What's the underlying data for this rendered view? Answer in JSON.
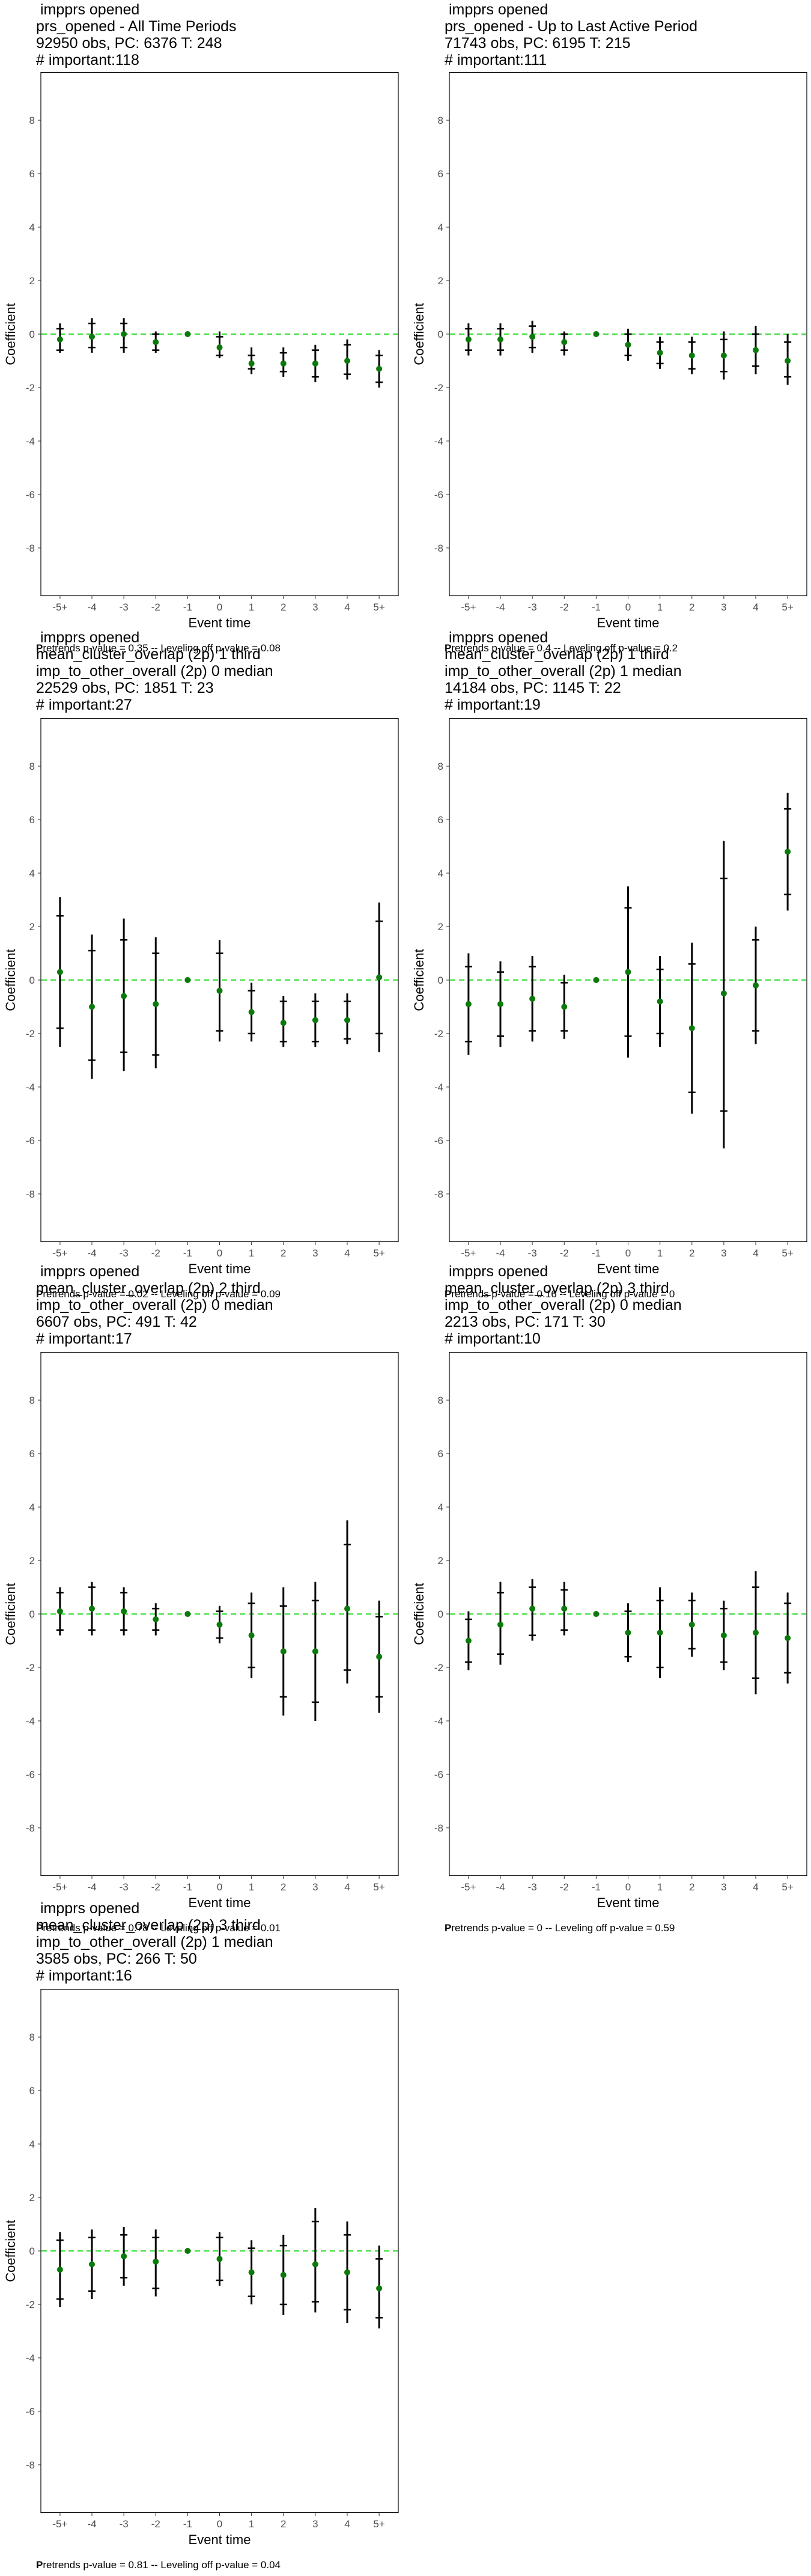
{
  "y_axis_label": "Coefficient",
  "x_axis_label": "Event time",
  "colors": {
    "point": "#0a7a0a",
    "zero_line": "#33dd33",
    "bar": "#000000",
    "frame": "#000000"
  },
  "chart_data": [
    {
      "type": "scatter",
      "title_lines": [
        " impprs opened",
        "prs_opened - All Time Periods",
        "92950 obs, PC: 6376 T: 248",
        "# important:118"
      ],
      "xlabel": "Event time",
      "ylabel": "Coefficient",
      "categories": [
        "-5+",
        "-4",
        "-3",
        "-2",
        "-1",
        "0",
        "1",
        "2",
        "3",
        "4",
        "5+"
      ],
      "y_ticks": [
        -8,
        -6,
        -4,
        -2,
        0,
        2,
        4,
        6,
        8
      ],
      "ylim": [
        -9.8,
        9.8
      ],
      "reference_line": 0,
      "series": [
        {
          "values": [
            -0.2,
            -0.1,
            0.0,
            -0.3,
            0.0,
            -0.5,
            -1.1,
            -1.1,
            -1.1,
            -1.0,
            -1.3
          ],
          "ci_lower": [
            -0.7,
            -0.7,
            -0.7,
            -0.7,
            0.0,
            -0.9,
            -1.5,
            -1.6,
            -1.8,
            -1.7,
            -2.0
          ],
          "ci_upper": [
            0.4,
            0.6,
            0.6,
            0.1,
            0.0,
            0.1,
            -0.5,
            -0.5,
            -0.4,
            -0.2,
            -0.6
          ],
          "ci_inner_lower": [
            -0.6,
            -0.5,
            -0.5,
            -0.6,
            0.0,
            -0.8,
            -1.3,
            -1.4,
            -1.6,
            -1.5,
            -1.8
          ],
          "ci_inner_upper": [
            0.2,
            0.4,
            0.4,
            0.0,
            0.0,
            -0.1,
            -0.8,
            -0.7,
            -0.6,
            -0.4,
            -0.8
          ]
        }
      ],
      "footnote": {
        "prefix": "P",
        "rest": "retrends p-value = 0.35 -- Leveling off p-value = 0.08"
      }
    },
    {
      "type": "scatter",
      "title_lines": [
        " impprs opened",
        "prs_opened - Up to Last Active Period",
        "71743 obs, PC: 6195 T: 215",
        "# important:111"
      ],
      "xlabel": "Event time",
      "ylabel": "Coefficient",
      "categories": [
        "-5+",
        "-4",
        "-3",
        "-2",
        "-1",
        "0",
        "1",
        "2",
        "3",
        "4",
        "5+"
      ],
      "y_ticks": [
        -8,
        -6,
        -4,
        -2,
        0,
        2,
        4,
        6,
        8
      ],
      "ylim": [
        -9.8,
        9.8
      ],
      "reference_line": 0,
      "series": [
        {
          "values": [
            -0.2,
            -0.2,
            -0.1,
            -0.3,
            0.0,
            -0.4,
            -0.7,
            -0.8,
            -0.8,
            -0.6,
            -1.0
          ],
          "ci_lower": [
            -0.8,
            -0.8,
            -0.7,
            -0.8,
            0.0,
            -1.0,
            -1.3,
            -1.5,
            -1.7,
            -1.5,
            -1.9
          ],
          "ci_upper": [
            0.4,
            0.4,
            0.5,
            0.1,
            0.0,
            0.2,
            -0.1,
            -0.1,
            0.1,
            0.3,
            0.0
          ],
          "ci_inner_lower": [
            -0.6,
            -0.6,
            -0.5,
            -0.6,
            0.0,
            -0.8,
            -1.1,
            -1.3,
            -1.4,
            -1.2,
            -1.6
          ],
          "ci_inner_upper": [
            0.2,
            0.2,
            0.3,
            0.0,
            0.0,
            0.0,
            -0.3,
            -0.3,
            -0.2,
            0.0,
            -0.3
          ]
        }
      ],
      "footnote": {
        "prefix": "P",
        "rest": "retrends p-value = 0.4 -- Leveling off p-value = 0.2"
      }
    },
    {
      "type": "scatter",
      "title_lines": [
        " impprs opened",
        "mean_cluster_overlap (2p) 1 third",
        "imp_to_other_overall (2p) 0 median",
        "22529 obs, PC: 1851 T: 23",
        "# important:27"
      ],
      "xlabel": "Event time",
      "ylabel": "Coefficient",
      "categories": [
        "-5+",
        "-4",
        "-3",
        "-2",
        "-1",
        "0",
        "1",
        "2",
        "3",
        "4",
        "5+"
      ],
      "y_ticks": [
        -8,
        -6,
        -4,
        -2,
        0,
        2,
        4,
        6,
        8
      ],
      "ylim": [
        -9.8,
        9.8
      ],
      "reference_line": 0,
      "series": [
        {
          "values": [
            0.3,
            -1.0,
            -0.6,
            -0.9,
            0.0,
            -0.4,
            -1.2,
            -1.6,
            -1.5,
            -1.5,
            0.1
          ],
          "ci_lower": [
            -2.5,
            -3.7,
            -3.4,
            -3.3,
            0.0,
            -2.3,
            -2.3,
            -2.5,
            -2.5,
            -2.4,
            -2.7
          ],
          "ci_upper": [
            3.1,
            1.7,
            2.3,
            1.6,
            0.0,
            1.5,
            -0.1,
            -0.6,
            -0.5,
            -0.5,
            2.9
          ],
          "ci_inner_lower": [
            -1.8,
            -3.0,
            -2.7,
            -2.8,
            0.0,
            -1.9,
            -2.0,
            -2.3,
            -2.3,
            -2.2,
            -2.0
          ],
          "ci_inner_upper": [
            2.4,
            1.1,
            1.5,
            1.0,
            0.0,
            1.0,
            -0.4,
            -0.8,
            -0.8,
            -0.8,
            2.2
          ]
        }
      ],
      "footnote": {
        "prefix": "P",
        "rest": "retrends p-value = 0.02 -- Leveling off p-value = 0.09"
      }
    },
    {
      "type": "scatter",
      "title_lines": [
        " impprs opened",
        "mean_cluster_overlap (2p) 1 third",
        "imp_to_other_overall (2p) 1 median",
        "14184 obs, PC: 1145 T: 22",
        "# important:19"
      ],
      "xlabel": "Event time",
      "ylabel": "Coefficient",
      "categories": [
        "-5+",
        "-4",
        "-3",
        "-2",
        "-1",
        "0",
        "1",
        "2",
        "3",
        "4",
        "5+"
      ],
      "y_ticks": [
        -8,
        -6,
        -4,
        -2,
        0,
        2,
        4,
        6,
        8
      ],
      "ylim": [
        -9.8,
        9.8
      ],
      "reference_line": 0,
      "series": [
        {
          "values": [
            -0.9,
            -0.9,
            -0.7,
            -1.0,
            0.0,
            0.3,
            -0.8,
            -1.8,
            -0.5,
            -0.2,
            4.8
          ],
          "ci_lower": [
            -2.8,
            -2.5,
            -2.3,
            -2.2,
            0.0,
            -2.9,
            -2.5,
            -5.0,
            -6.3,
            -2.4,
            2.6
          ],
          "ci_upper": [
            1.0,
            0.7,
            0.9,
            0.2,
            0.0,
            3.5,
            0.9,
            1.4,
            5.2,
            2.0,
            7.0
          ],
          "ci_inner_lower": [
            -2.3,
            -2.1,
            -1.9,
            -1.9,
            0.0,
            -2.1,
            -2.0,
            -4.2,
            -4.9,
            -1.9,
            3.2
          ],
          "ci_inner_upper": [
            0.5,
            0.3,
            0.5,
            -0.1,
            0.0,
            2.7,
            0.4,
            0.6,
            3.8,
            1.5,
            6.4
          ]
        }
      ],
      "footnote": {
        "prefix": "P",
        "rest": "retrends p-value = 0.16 -- Leveling off p-value = 0"
      }
    },
    {
      "type": "scatter",
      "title_lines": [
        " impprs opened",
        "mean_cluster_overlap (2p) 2 third",
        "imp_to_other_overall (2p) 0 median",
        "6607 obs, PC: 491 T: 42",
        "# important:17"
      ],
      "xlabel": "Event time",
      "ylabel": "Coefficient",
      "categories": [
        "-5+",
        "-4",
        "-3",
        "-2",
        "-1",
        "0",
        "1",
        "2",
        "3",
        "4",
        "5+"
      ],
      "y_ticks": [
        -8,
        -6,
        -4,
        -2,
        0,
        2,
        4,
        6,
        8
      ],
      "ylim": [
        -9.8,
        9.8
      ],
      "reference_line": 0,
      "series": [
        {
          "values": [
            0.1,
            0.2,
            0.1,
            -0.2,
            0.0,
            -0.4,
            -0.8,
            -1.4,
            -1.4,
            0.2,
            -1.6
          ],
          "ci_lower": [
            -0.8,
            -0.8,
            -0.8,
            -0.8,
            0.0,
            -1.1,
            -2.4,
            -3.8,
            -4.0,
            -2.6,
            -3.7
          ],
          "ci_upper": [
            1.0,
            1.2,
            1.0,
            0.4,
            0.0,
            0.3,
            0.8,
            1.0,
            1.2,
            3.5,
            0.5
          ],
          "ci_inner_lower": [
            -0.6,
            -0.6,
            -0.6,
            -0.6,
            0.0,
            -0.9,
            -2.0,
            -3.1,
            -3.3,
            -2.1,
            -3.1
          ],
          "ci_inner_upper": [
            0.8,
            1.0,
            0.8,
            0.2,
            0.0,
            0.1,
            0.4,
            0.3,
            0.5,
            2.6,
            -0.1
          ]
        }
      ],
      "footnote": {
        "prefix": "P",
        "rest": "retrends p-value = 0.78 -- Leveling off p-value = 0.01"
      }
    },
    {
      "type": "scatter",
      "title_lines": [
        " impprs opened",
        "mean_cluster_overlap (2p) 3 third",
        "imp_to_other_overall (2p) 0 median",
        "2213 obs, PC: 171 T: 30",
        "# important:10"
      ],
      "xlabel": "Event time",
      "ylabel": "Coefficient",
      "categories": [
        "-5+",
        "-4",
        "-3",
        "-2",
        "-1",
        "0",
        "1",
        "2",
        "3",
        "4",
        "5+"
      ],
      "y_ticks": [
        -8,
        -6,
        -4,
        -2,
        0,
        2,
        4,
        6,
        8
      ],
      "ylim": [
        -9.8,
        9.8
      ],
      "reference_line": 0,
      "series": [
        {
          "values": [
            -1.0,
            -0.4,
            0.2,
            0.2,
            0.0,
            -0.7,
            -0.7,
            -0.4,
            -0.8,
            -0.7,
            -0.9
          ],
          "ci_lower": [
            -2.1,
            -1.9,
            -1.0,
            -0.8,
            0.0,
            -1.8,
            -2.4,
            -1.6,
            -2.1,
            -3.0,
            -2.6
          ],
          "ci_upper": [
            0.1,
            1.2,
            1.3,
            1.2,
            0.0,
            0.4,
            1.0,
            0.8,
            0.5,
            1.6,
            0.8
          ],
          "ci_inner_lower": [
            -1.8,
            -1.5,
            -0.8,
            -0.6,
            0.0,
            -1.6,
            -2.0,
            -1.3,
            -1.8,
            -2.4,
            -2.2
          ],
          "ci_inner_upper": [
            -0.2,
            0.8,
            1.0,
            0.9,
            0.0,
            0.1,
            0.5,
            0.5,
            0.2,
            1.0,
            0.4
          ]
        }
      ],
      "footnote": {
        "prefix": "P",
        "rest": "retrends p-value = 0 -- Leveling off p-value = 0.59"
      }
    },
    {
      "type": "scatter",
      "title_lines": [
        " impprs opened",
        "mean_cluster_overlap (2p) 3 third",
        "imp_to_other_overall (2p) 1 median",
        "3585 obs, PC: 266 T: 50",
        "# important:16"
      ],
      "xlabel": "Event time",
      "ylabel": "Coefficient",
      "categories": [
        "-5+",
        "-4",
        "-3",
        "-2",
        "-1",
        "0",
        "1",
        "2",
        "3",
        "4",
        "5+"
      ],
      "y_ticks": [
        -8,
        -6,
        -4,
        -2,
        0,
        2,
        4,
        6,
        8
      ],
      "ylim": [
        -9.8,
        9.8
      ],
      "reference_line": 0,
      "series": [
        {
          "values": [
            -0.7,
            -0.5,
            -0.2,
            -0.4,
            0.0,
            -0.3,
            -0.8,
            -0.9,
            -0.5,
            -0.8,
            -1.4
          ],
          "ci_lower": [
            -2.1,
            -1.8,
            -1.3,
            -1.7,
            0.0,
            -1.3,
            -2.0,
            -2.4,
            -2.3,
            -2.7,
            -2.9
          ],
          "ci_upper": [
            0.7,
            0.8,
            0.9,
            0.8,
            0.0,
            0.7,
            0.4,
            0.6,
            1.6,
            1.1,
            0.2
          ],
          "ci_inner_lower": [
            -1.8,
            -1.5,
            -1.0,
            -1.4,
            0.0,
            -1.1,
            -1.7,
            -2.0,
            -1.9,
            -2.2,
            -2.5
          ],
          "ci_inner_upper": [
            0.4,
            0.5,
            0.6,
            0.5,
            0.0,
            0.5,
            0.1,
            0.2,
            1.1,
            0.6,
            -0.3
          ]
        }
      ],
      "footnote": {
        "prefix": "P",
        "rest": "retrends p-value = 0.81 -- Leveling off p-value = 0.04"
      }
    }
  ]
}
